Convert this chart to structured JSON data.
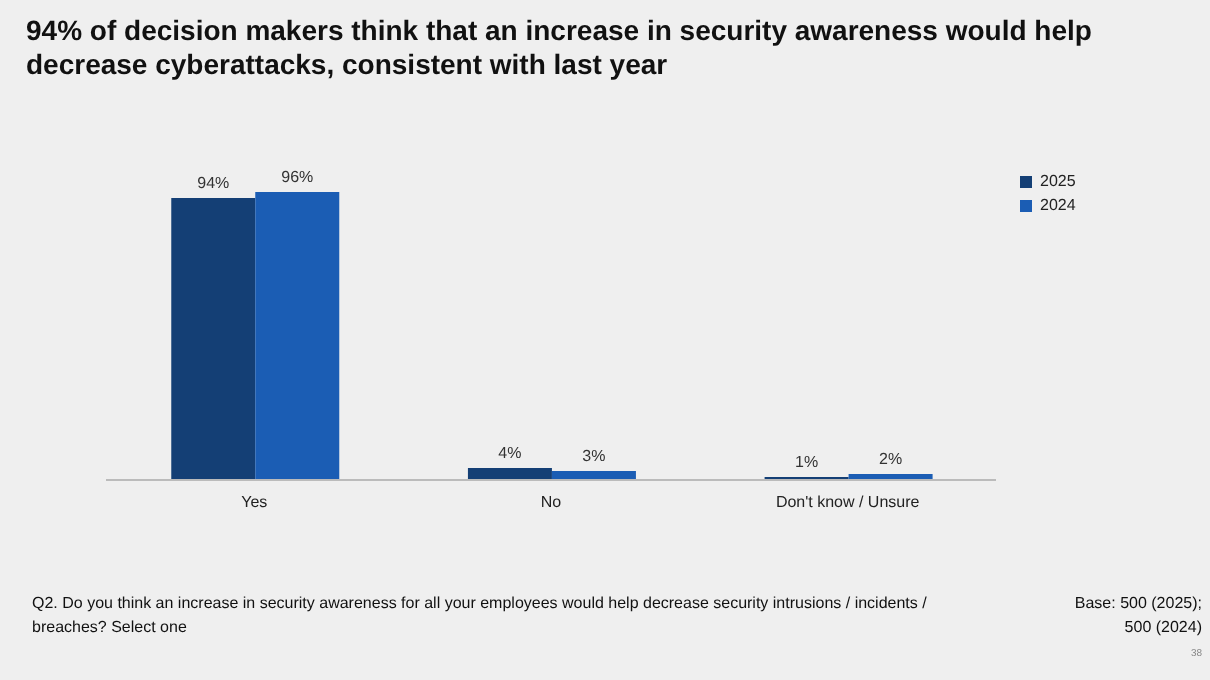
{
  "chart_data": {
    "type": "bar",
    "title": "94% of decision makers think that an increase in security awareness would help decrease cyberattacks, consistent with last year",
    "categories": [
      "Yes",
      "No",
      "Don't know / Unsure"
    ],
    "series": [
      {
        "name": "2025",
        "color": "#143f75",
        "values": [
          94,
          4,
          1
        ],
        "value_labels": [
          "94%",
          "4%",
          "1%"
        ]
      },
      {
        "name": "2024",
        "color": "#1b5db4",
        "values": [
          96,
          3,
          2
        ],
        "value_labels": [
          "96%",
          "3%",
          "2%"
        ]
      }
    ],
    "tick_labels": "x",
    "grid": false,
    "legend": "top right",
    "annotations": [
      "Q2. Do you think an increase in security awareness for all your employees would help decrease security intrusions / incidents / breaches? Select one",
      "Base: 500 (2025); 500 (2024)",
      "38"
    ]
  }
}
